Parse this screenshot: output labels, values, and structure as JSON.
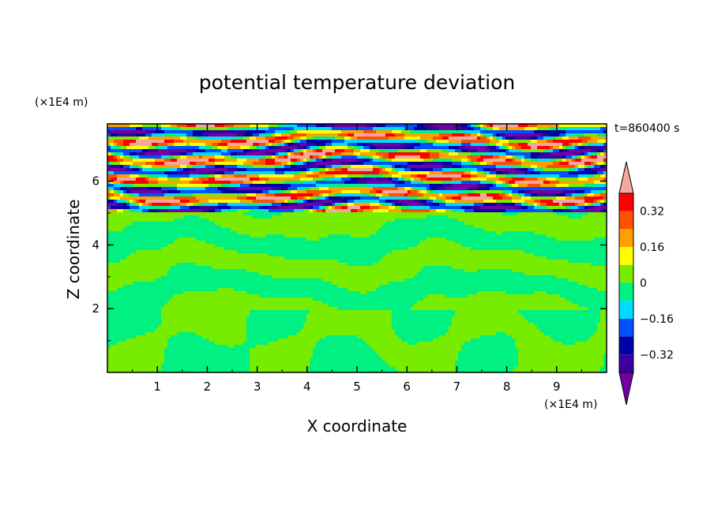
{
  "chart_data": {
    "type": "heatmap",
    "title": "potential temperature deviation",
    "xlabel": "X coordinate",
    "ylabel": "Z coordinate",
    "x_unit": "(×1E4 m)",
    "y_unit": "(×1E4 m)",
    "time_label": "t=860400 s",
    "xlim": [
      0,
      10
    ],
    "ylim": [
      0,
      7.8
    ],
    "x_ticks": [
      "1",
      "2",
      "3",
      "4",
      "5",
      "6",
      "7",
      "8",
      "9"
    ],
    "y_ticks": [
      "2",
      "4",
      "6"
    ],
    "colorbar": {
      "levels": [
        -0.4,
        -0.32,
        -0.24,
        -0.16,
        -0.08,
        0,
        0.08,
        0.16,
        0.24,
        0.32,
        0.4
      ],
      "tick_labels": [
        "0.32",
        "0.16",
        "0",
        "−0.16",
        "−0.32"
      ],
      "tick_values": [
        0.32,
        0.16,
        0,
        -0.16,
        -0.32
      ],
      "colors": [
        "#7300a6",
        "#3c00a0",
        "#0000a8",
        "#0050ff",
        "#00dcff",
        "#00f082",
        "#78ec00",
        "#ffff00",
        "#ffa000",
        "#ff5000",
        "#ff0000",
        "#f2a8a0"
      ]
    },
    "field_regions": [
      {
        "zmin": 0,
        "zmax": 2.0,
        "pattern": "large convective cells",
        "values": [
          -0.05,
          0.05
        ]
      },
      {
        "zmin": 2.0,
        "zmax": 5.0,
        "pattern": "horizontal bands",
        "values": [
          -0.05,
          0.05
        ]
      },
      {
        "zmin": 5.0,
        "zmax": 7.8,
        "pattern": "strong horizontal layers",
        "values": [
          -0.45,
          0.45
        ]
      }
    ]
  }
}
